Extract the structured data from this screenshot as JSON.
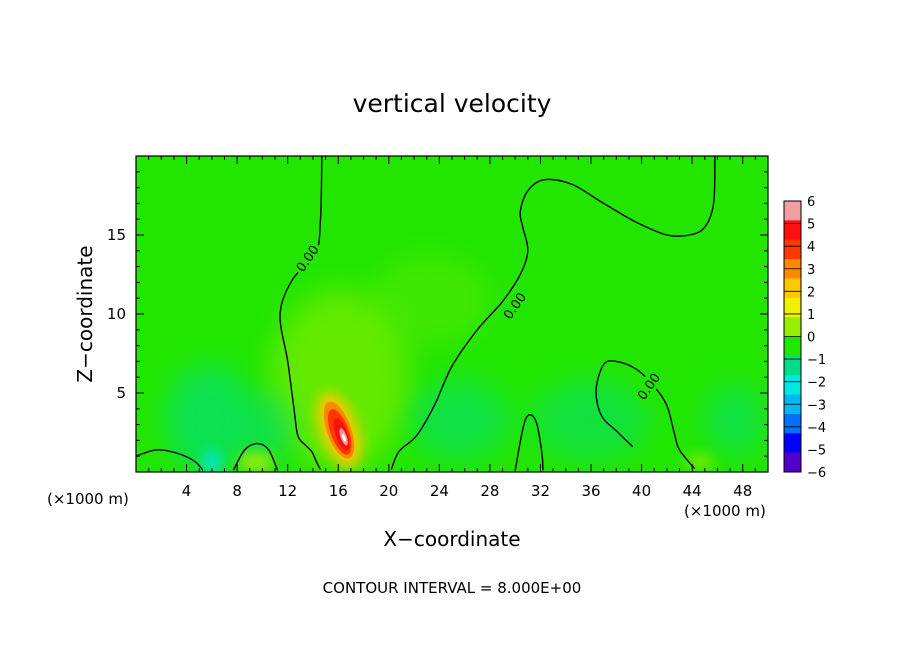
{
  "chart_data": {
    "type": "heatmap",
    "title": "vertical velocity",
    "xlabel": "X−coordinate",
    "ylabel": "Z−coordinate",
    "x_unit": "(×1000 m)",
    "y_unit": "(×1000 m)",
    "xlim": [
      0,
      50
    ],
    "ylim": [
      0,
      20
    ],
    "x_ticks": [
      4,
      8,
      12,
      16,
      20,
      24,
      28,
      32,
      36,
      40,
      44,
      48
    ],
    "x_tick_labels": [
      "4",
      "8",
      "12",
      "16",
      "20",
      "24",
      "28",
      "32",
      "36",
      "40",
      "44",
      "48"
    ],
    "y_ticks": [
      5,
      10,
      15
    ],
    "y_tick_labels": [
      "5",
      "10",
      "15"
    ],
    "footer": "CONTOUR INTERVAL = 8.000E+00",
    "background_color": "#22e600",
    "colorbar": {
      "levels": [
        6,
        5,
        4,
        3,
        2,
        1,
        0,
        -1,
        -2,
        -3,
        -4,
        -5,
        -6
      ],
      "labels": [
        "6",
        "5",
        "4",
        "3",
        "2",
        "1",
        "0",
        "−1",
        "−2",
        "−3",
        "−4",
        "−5",
        "−6"
      ],
      "colors": [
        "#f0a0a0",
        "#ff1010",
        "#ff3800",
        "#ff8800",
        "#ffc800",
        "#f0f000",
        "#99ee00",
        "#22e600",
        "#00dd88",
        "#00e8e0",
        "#00b8f0",
        "#0070ff",
        "#0000ff",
        "#5000c8"
      ]
    },
    "features": [
      {
        "kind": "updraft",
        "x": 16.0,
        "z": 2.5,
        "peak": 6
      },
      {
        "kind": "weak-updraft",
        "x": 17.5,
        "z": 7.0,
        "peak": 1
      },
      {
        "kind": "downdraft",
        "x": 6.0,
        "z": 3.0,
        "peak": -2
      }
    ],
    "contours": [
      {
        "label": "0.00",
        "label_at": [
          13.6,
          13.5
        ],
        "points": [
          [
            14.7,
            20
          ],
          [
            14.6,
            16
          ],
          [
            14.2,
            13.8
          ],
          [
            12.4,
            12.2
          ],
          [
            11.4,
            10
          ],
          [
            12.0,
            7
          ],
          [
            12.5,
            4
          ],
          [
            12.8,
            2.3
          ],
          [
            13.4,
            1.7
          ],
          [
            13.9,
            1.3
          ],
          [
            14.3,
            0.6
          ],
          [
            14.6,
            0.15
          ]
        ]
      },
      {
        "label": "0.00",
        "label_at": [
          30.0,
          10.5
        ],
        "points": [
          [
            20.2,
            0.15
          ],
          [
            20.8,
            1.3
          ],
          [
            22.2,
            2.3
          ],
          [
            23.6,
            4.2
          ],
          [
            25.0,
            6.7
          ],
          [
            27.0,
            9.0
          ],
          [
            29.0,
            10.8
          ],
          [
            30.4,
            12.5
          ],
          [
            31.0,
            14.0
          ],
          [
            30.6,
            15.5
          ],
          [
            30.4,
            16.5
          ],
          [
            31.0,
            17.8
          ],
          [
            32.3,
            18.5
          ],
          [
            34.5,
            18.2
          ],
          [
            37.0,
            17.0
          ],
          [
            39.6,
            15.8
          ],
          [
            42.0,
            15.0
          ],
          [
            43.8,
            15.0
          ],
          [
            45.0,
            15.5
          ],
          [
            45.7,
            17.0
          ],
          [
            45.8,
            20
          ]
        ]
      },
      {
        "label": "0.00",
        "label_at": [
          40.6,
          5.4
        ],
        "points": [
          [
            39.3,
            1.6
          ],
          [
            38.0,
            2.6
          ],
          [
            36.8,
            3.6
          ],
          [
            36.4,
            5.2
          ],
          [
            37.0,
            6.8
          ],
          [
            38.0,
            7.0
          ],
          [
            39.6,
            6.5
          ],
          [
            41.0,
            5.4
          ],
          [
            42.0,
            4.2
          ],
          [
            42.6,
            2.4
          ],
          [
            43.0,
            1.4
          ],
          [
            44.2,
            0.2
          ]
        ]
      },
      {
        "label": "",
        "label_at": null,
        "points": [
          [
            0,
            1.0
          ],
          [
            1.6,
            1.4
          ],
          [
            3.2,
            1.2
          ],
          [
            4.6,
            0.7
          ],
          [
            5.3,
            0.1
          ]
        ]
      },
      {
        "label": "",
        "label_at": null,
        "points": [
          [
            7.7,
            0.1
          ],
          [
            8.6,
            1.4
          ],
          [
            9.6,
            1.8
          ],
          [
            10.5,
            1.4
          ],
          [
            11.2,
            0.1
          ]
        ]
      },
      {
        "label": "",
        "label_at": null,
        "points": [
          [
            30.0,
            0.1
          ],
          [
            30.8,
            3.3
          ],
          [
            31.6,
            3.3
          ],
          [
            32.1,
            1.3
          ],
          [
            32.2,
            0.1
          ]
        ]
      }
    ]
  }
}
